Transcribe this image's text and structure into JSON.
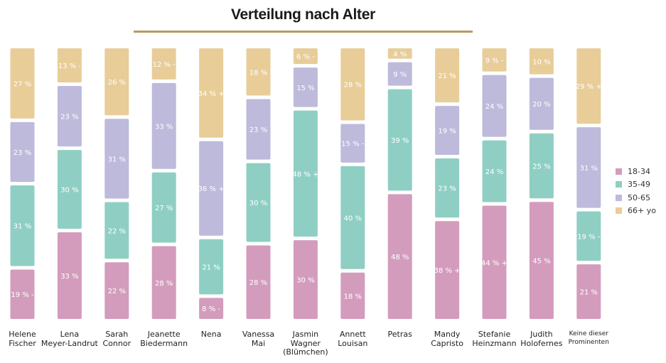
{
  "colors": {
    "18-34": "#d39cbc",
    "35-49": "#8fcfc3",
    "50-65": "#bdbadb",
    "66+ yo": "#e8cd99"
  },
  "chart_data": {
    "type": "bar",
    "stacked": true,
    "orientation": "vertical",
    "title": "Verteilung nach Alter",
    "xlabel": "",
    "ylabel": "",
    "ylim": [
      0,
      100
    ],
    "grid": false,
    "legend_position": "right",
    "categories": [
      "Helene\nFischer",
      "Lena\nMeyer-Landrut",
      "Sarah\nConnor",
      "Jeanette\nBiedermann",
      "Nena",
      "Vanessa\nMai",
      "Jasmin\nWagner\n(Blümchen)",
      "Annett\nLouisan",
      "Petras",
      "Mandy\nCapristo",
      "Stefanie\nHeinzmann",
      "Judith\nHolofernes",
      "Keine dieser\nProminenten"
    ],
    "series": [
      {
        "name": "18-34",
        "values": [
          19,
          33,
          22,
          28,
          8,
          28,
          30,
          18,
          48,
          38,
          44,
          45,
          21
        ],
        "labels": [
          "19 % -",
          "33 %",
          "22 %",
          "28 %",
          "8 % -",
          "28 %",
          "30 %",
          "18 %",
          "48 %",
          "38 % +",
          "44 % +",
          "45 %",
          "21 %"
        ]
      },
      {
        "name": "35-49",
        "values": [
          31,
          30,
          22,
          27,
          21,
          30,
          48,
          40,
          39,
          23,
          24,
          25,
          19
        ],
        "labels": [
          "31 %",
          "30 %",
          "22 %",
          "27 %",
          "21 %",
          "30 %",
          "48 % +",
          "40 %",
          "39 %",
          "23 %",
          "24 %",
          "25 %",
          "19 % -"
        ]
      },
      {
        "name": "50-65",
        "values": [
          23,
          23,
          31,
          33,
          36,
          23,
          15,
          15,
          9,
          19,
          24,
          20,
          31
        ],
        "labels": [
          "23 %",
          "23 %",
          "31 %",
          "33 %",
          "36 % +",
          "23 %",
          "15 %",
          "15 % -",
          "9 %",
          "19 %",
          "24 %",
          "20 %",
          "31 %"
        ]
      },
      {
        "name": "66+ yo",
        "values": [
          27,
          13,
          26,
          12,
          34,
          18,
          6,
          28,
          4,
          21,
          9,
          10,
          29
        ],
        "labels": [
          "27 %",
          "13 % -",
          "26 %",
          "12 % -",
          "34 % +",
          "18 %",
          "6 % -",
          "28 %",
          "4 %",
          "21 %",
          "9 % -",
          "10 %",
          "29 % +"
        ]
      }
    ]
  }
}
